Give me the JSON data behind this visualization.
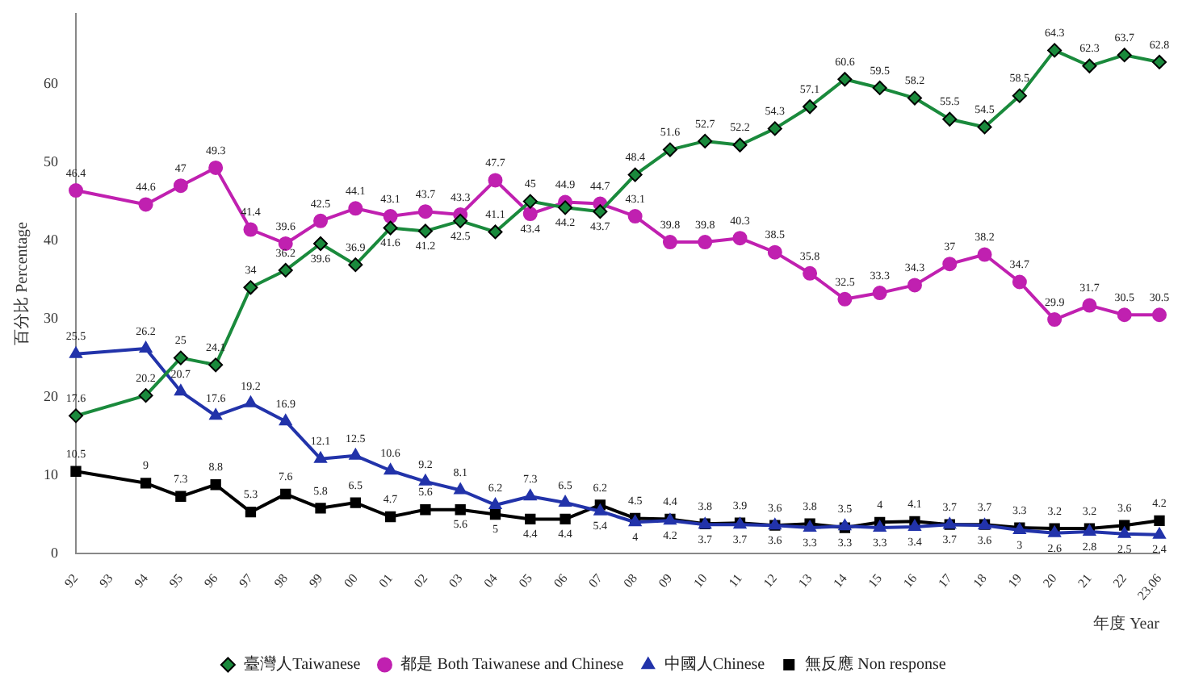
{
  "chart_data": {
    "type": "line",
    "ylabel": "百分比 Percentage",
    "xlabel": "年度 Year",
    "categories": [
      "92",
      "93",
      "94",
      "95",
      "96",
      "97",
      "98",
      "99",
      "00",
      "01",
      "02",
      "03",
      "04",
      "05",
      "06",
      "07",
      "08",
      "09",
      "10",
      "11",
      "12",
      "13",
      "14",
      "15",
      "16",
      "17",
      "18",
      "19",
      "20",
      "21",
      "22",
      "23.06"
    ],
    "ylim": [
      0,
      69
    ],
    "yticks": [
      0,
      10,
      20,
      30,
      40,
      50,
      60
    ],
    "grid": false,
    "legend": "bottom",
    "data_labels": true,
    "series": [
      {
        "name": "臺灣人Taiwanese",
        "color": "#1a8a3c",
        "marker": "diamond",
        "values": [
          17.6,
          null,
          20.2,
          25.0,
          24.1,
          34.0,
          36.2,
          39.6,
          36.9,
          41.6,
          41.2,
          42.5,
          41.1,
          45.0,
          44.2,
          43.7,
          48.4,
          51.6,
          52.7,
          52.2,
          54.3,
          57.1,
          60.6,
          59.5,
          58.2,
          55.5,
          54.5,
          58.5,
          64.3,
          62.3,
          63.7,
          62.8
        ]
      },
      {
        "name": "都是 Both Taiwanese and Chinese",
        "color": "#c020b0",
        "marker": "circle",
        "values": [
          46.4,
          null,
          44.6,
          47.0,
          49.3,
          41.4,
          39.6,
          42.5,
          44.1,
          43.1,
          43.7,
          43.3,
          47.7,
          43.4,
          44.9,
          44.7,
          43.1,
          39.8,
          39.8,
          40.3,
          38.5,
          35.8,
          32.5,
          33.3,
          34.3,
          37.0,
          38.2,
          34.7,
          29.9,
          31.7,
          30.5,
          30.5
        ]
      },
      {
        "name": "中國人Chinese",
        "color": "#2233aa",
        "marker": "triangle",
        "values": [
          25.5,
          null,
          26.2,
          20.7,
          17.6,
          19.2,
          16.9,
          12.1,
          12.5,
          10.6,
          9.2,
          8.1,
          6.2,
          7.3,
          6.5,
          5.4,
          4.0,
          4.2,
          3.7,
          3.7,
          3.6,
          3.3,
          3.5,
          3.3,
          3.4,
          3.7,
          3.6,
          3.0,
          2.6,
          2.8,
          2.5,
          2.4
        ]
      },
      {
        "name": "無反應 Non response",
        "color": "#000000",
        "marker": "square",
        "values": [
          10.5,
          null,
          9.0,
          7.3,
          8.8,
          5.3,
          7.6,
          5.8,
          6.5,
          4.7,
          5.6,
          5.6,
          5.0,
          4.4,
          4.4,
          6.2,
          4.5,
          4.4,
          3.8,
          3.9,
          3.6,
          3.8,
          3.3,
          4.0,
          4.1,
          3.7,
          3.7,
          3.3,
          3.2,
          3.2,
          3.6,
          4.2
        ]
      }
    ]
  }
}
